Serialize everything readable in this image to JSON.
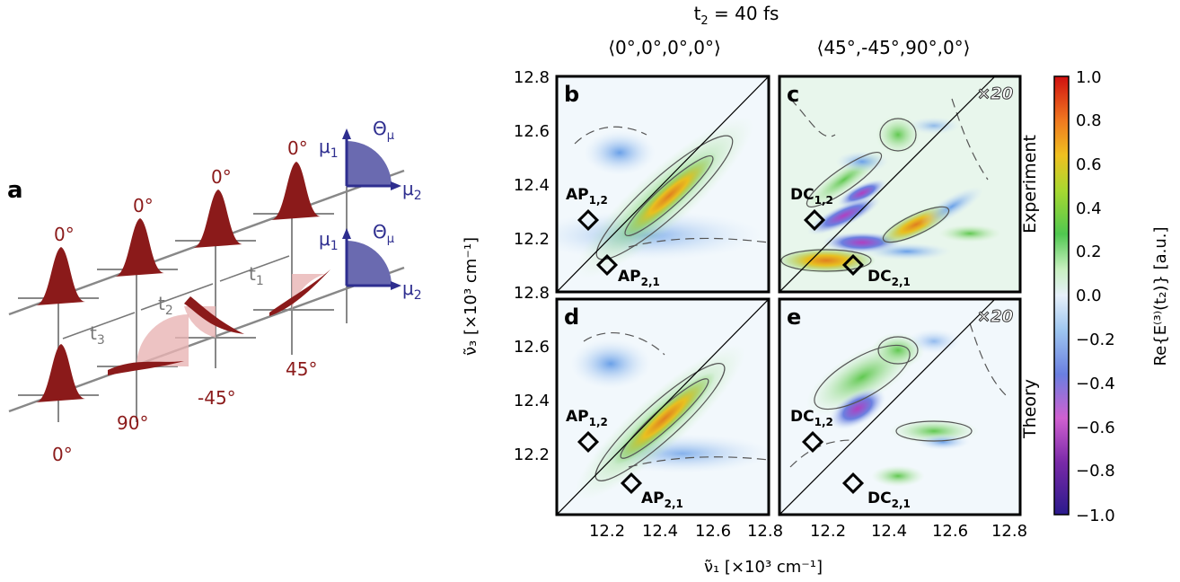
{
  "colors": {
    "pulse": "#8b1a1a",
    "pulse_light": "#e8b4b4",
    "dipole": "#2e2e8f",
    "dipole_fill": "#6a6ab0",
    "axis_gray": "#888888",
    "angle_red": "#8b1a1a"
  },
  "panel_a": {
    "letter": "a",
    "angles_top": [
      "0°",
      "0°",
      "0°",
      "0°"
    ],
    "angles_bottom": [
      "0°",
      "90°",
      "-45°",
      "45°"
    ],
    "delays": [
      "t",
      "t",
      "t"
    ],
    "delay_subs": [
      "3",
      "2",
      "1"
    ],
    "mu1": "μ",
    "mu1_sub": "1",
    "mu2": "μ",
    "mu2_sub": "2",
    "theta": "Θ",
    "theta_sub": "μ"
  },
  "header": {
    "t2_prefix": "t",
    "t2_sub": "2",
    "t2_value": " = 40 fs",
    "col1": "⟨0°,0°,0°,0°⟩",
    "col2": "⟨45°,-45°,90°,0°⟩"
  },
  "panels": {
    "b": {
      "letter": "b",
      "labels": [
        {
          "main": "AP",
          "sub": "1,2"
        },
        {
          "main": "AP",
          "sub": "2,1"
        }
      ]
    },
    "c": {
      "letter": "c",
      "scale": "×20",
      "labels": [
        {
          "main": "DC",
          "sub": "1,2"
        },
        {
          "main": "DC",
          "sub": "2,1"
        }
      ]
    },
    "d": {
      "letter": "d",
      "labels": [
        {
          "main": "AP",
          "sub": "1,2"
        },
        {
          "main": "AP",
          "sub": "2,1"
        }
      ]
    },
    "e": {
      "letter": "e",
      "scale": "×20",
      "labels": [
        {
          "main": "DC",
          "sub": "1,2"
        },
        {
          "main": "DC",
          "sub": "2,1"
        }
      ]
    }
  },
  "row_labels": {
    "top": "Experiment",
    "bottom": "Theory"
  },
  "axes": {
    "y_ticks_top": [
      "12.8",
      "12.6",
      "12.4",
      "12.2"
    ],
    "y_ticks_bottom": [
      "12.8",
      "12.6",
      "12.4",
      "12.2"
    ],
    "x_ticks_left": [
      "12.2",
      "12.4",
      "12.6",
      "12.8"
    ],
    "x_ticks_right": [
      "12.2",
      "12.4",
      "12.6",
      "12.8"
    ],
    "ylabel": "ν̃₃ [×10³ cm⁻¹]",
    "xlabel": "ν̃₁ [×10³ cm⁻¹]"
  },
  "colorbar": {
    "ticks": [
      "1.0",
      "0.8",
      "0.6",
      "0.4",
      "0.2",
      "0.0",
      "−0.2",
      "−0.4",
      "−0.6",
      "−0.8",
      "−1.0"
    ],
    "label": "Re{E⁽³⁾(t₂)} [a.u.]"
  }
}
